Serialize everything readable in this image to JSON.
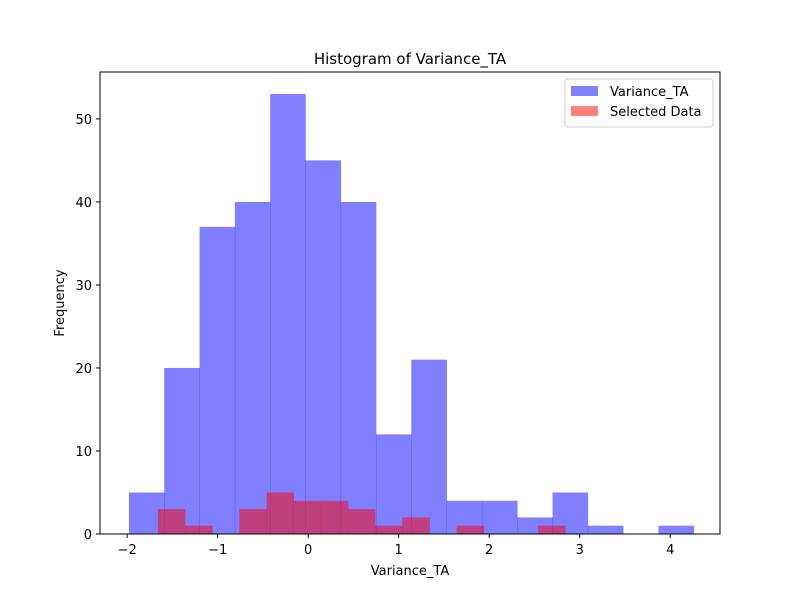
{
  "chart_data": {
    "type": "bar",
    "title": "Histogram of Variance_TA",
    "xlabel": "Variance_TA",
    "ylabel": "Frequency",
    "xlim": [
      -2.3,
      4.55
    ],
    "ylim": [
      0,
      55.65
    ],
    "x_ticks": [
      -2,
      -1,
      0,
      1,
      2,
      3,
      4
    ],
    "y_ticks": [
      0,
      10,
      20,
      30,
      40,
      50
    ],
    "legend_position": "top-right",
    "series": [
      {
        "name": "Variance_TA",
        "color": "#0000ff",
        "alpha": 0.5,
        "bin_edges": [
          -1.98,
          -1.59,
          -1.2,
          -0.81,
          -0.42,
          -0.03,
          0.36,
          0.75,
          1.14,
          1.53,
          1.92,
          2.31,
          2.7,
          3.09,
          3.48,
          3.87,
          4.26
        ],
        "values": [
          5,
          20,
          37,
          40,
          53,
          45,
          40,
          12,
          21,
          4,
          4,
          2,
          5,
          1,
          0,
          1
        ]
      },
      {
        "name": "Selected Data",
        "color": "#ff0000",
        "alpha": 0.5,
        "bin_edges": [
          -1.66,
          -1.36,
          -1.06,
          -0.76,
          -0.46,
          -0.16,
          0.14,
          0.44,
          0.74,
          1.04,
          1.34,
          1.64,
          1.94,
          2.24,
          2.54,
          2.84
        ],
        "values": [
          3,
          1,
          0,
          3,
          5,
          4,
          4,
          3,
          1,
          2,
          0,
          1,
          0,
          0,
          1
        ]
      }
    ]
  }
}
